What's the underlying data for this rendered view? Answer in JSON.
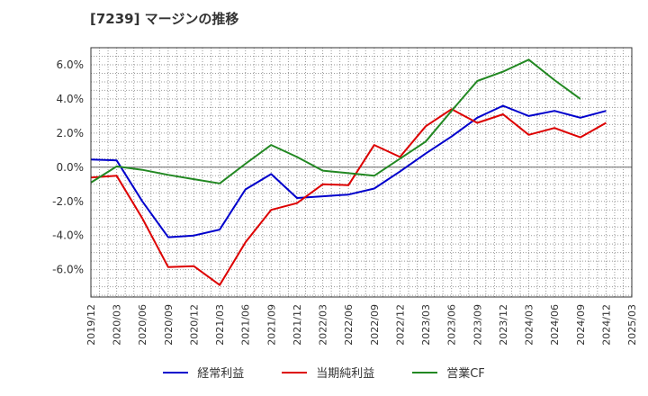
{
  "chart_data": {
    "type": "line",
    "title": "[7239]  マージンの推移",
    "x": [
      "2019/12",
      "2020/03",
      "2020/06",
      "2020/09",
      "2020/12",
      "2021/03",
      "2021/06",
      "2021/09",
      "2021/12",
      "2022/03",
      "2022/06",
      "2022/09",
      "2022/12",
      "2023/03",
      "2023/06",
      "2023/09",
      "2023/12",
      "2024/03",
      "2024/06",
      "2024/09",
      "2024/12",
      "2025/03"
    ],
    "yticks": [
      "6.0%",
      "4.0%",
      "2.0%",
      "0.0%",
      "-2.0%",
      "-4.0%",
      "-6.0%"
    ],
    "ylim": [
      -7.6,
      7.0
    ],
    "grid": true,
    "legend_position": "bottom",
    "series": [
      {
        "name": "経常利益",
        "color": "#0000cc",
        "values": [
          0.45,
          0.4,
          -2.0,
          -4.1,
          -4.0,
          -3.65,
          -1.3,
          -0.4,
          -1.8,
          -1.7,
          -1.6,
          -1.25,
          -0.25,
          0.8,
          1.8,
          2.9,
          3.6,
          3.0,
          3.3,
          2.9,
          3.3,
          null
        ]
      },
      {
        "name": "当期純利益",
        "color": "#dd0000",
        "values": [
          -0.6,
          -0.5,
          -3.0,
          -5.85,
          -5.8,
          -6.9,
          -4.4,
          -2.5,
          -2.1,
          -1.0,
          -1.05,
          1.3,
          0.6,
          2.4,
          3.4,
          2.6,
          3.1,
          1.9,
          2.3,
          1.75,
          2.6,
          null
        ]
      },
      {
        "name": "営業CF",
        "color": "#228822",
        "values": [
          -0.9,
          0.05,
          -0.15,
          -0.45,
          -0.7,
          -0.95,
          0.2,
          1.3,
          0.6,
          -0.2,
          -0.35,
          -0.5,
          0.5,
          1.5,
          3.3,
          5.05,
          5.6,
          6.3,
          5.1,
          4.0,
          null,
          null
        ]
      }
    ]
  }
}
